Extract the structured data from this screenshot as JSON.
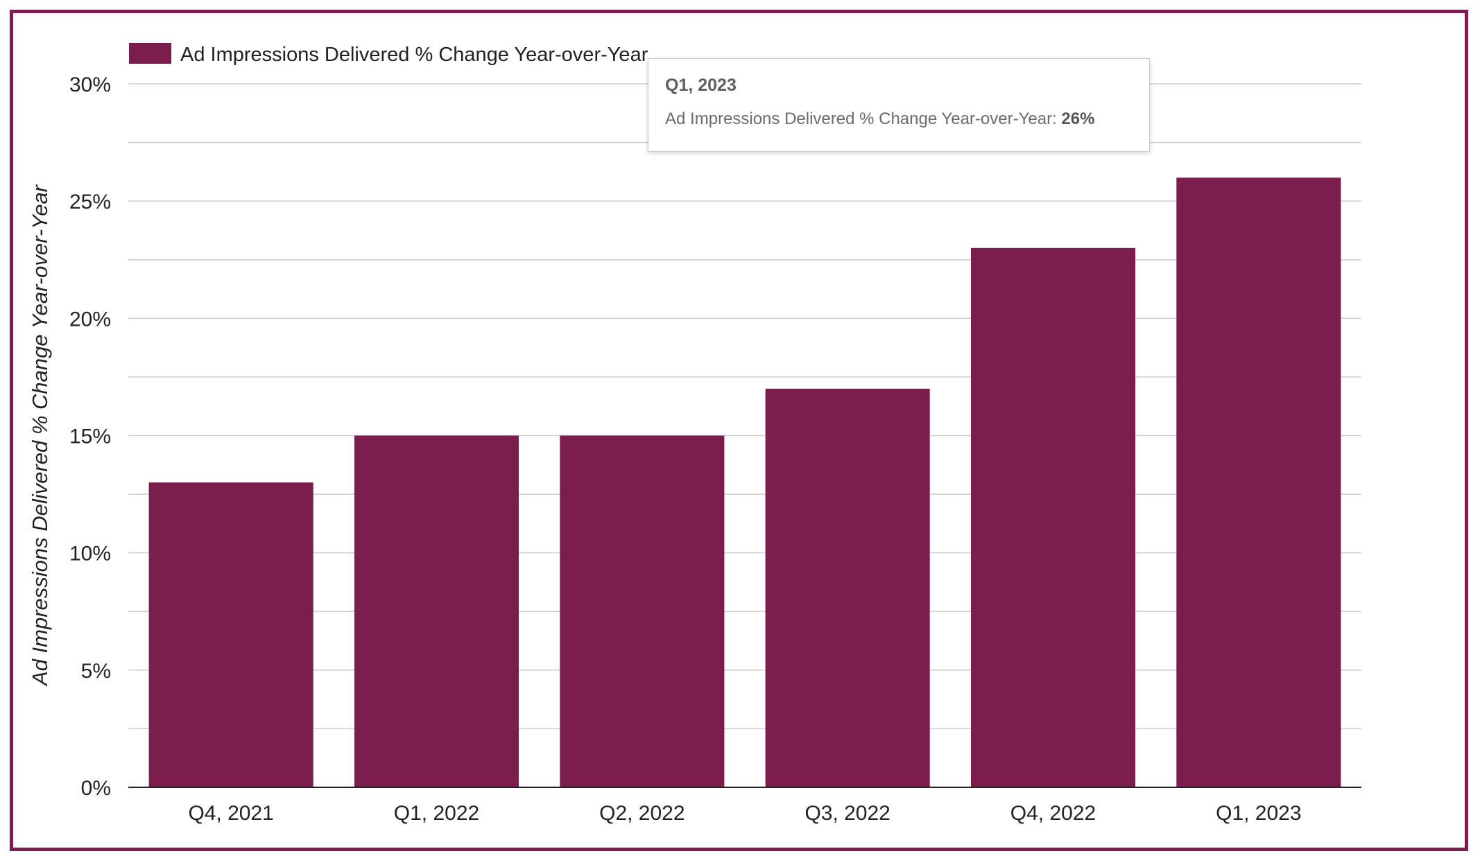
{
  "chart_data": {
    "type": "bar",
    "categories": [
      "Q4, 2021",
      "Q1, 2022",
      "Q2, 2022",
      "Q3, 2022",
      "Q4, 2022",
      "Q1, 2023"
    ],
    "series": [
      {
        "name": "Ad Impressions Delivered % Change Year-over-Year",
        "values": [
          13,
          15,
          15,
          17,
          23,
          26
        ]
      }
    ],
    "ylabel": "Ad Impressions Delivered % Change Year-over-Year",
    "xlabel": "",
    "ylim": [
      0,
      30
    ],
    "yticks": [
      "0%",
      "5%",
      "10%",
      "15%",
      "20%",
      "25%",
      "30%"
    ],
    "grid": true,
    "legend_position": "top-left",
    "bar_color": "#7b1e4d"
  },
  "tooltip": {
    "title": "Q1, 2023",
    "label": "Ad Impressions Delivered % Change Year-over-Year: ",
    "value": "26%"
  }
}
